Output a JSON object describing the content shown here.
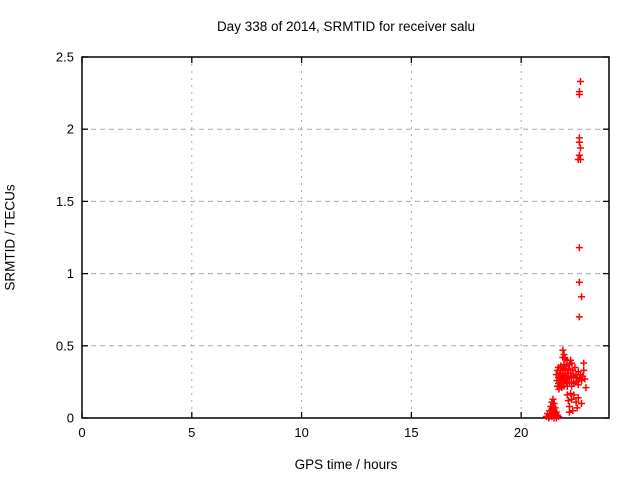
{
  "chart_data": {
    "type": "scatter",
    "title": "Day 338 of 2014, SRMTID for receiver salu",
    "xlabel": "GPS time / hours",
    "ylabel": "SRMTID / TECUs",
    "xlim": [
      0,
      24
    ],
    "ylim": [
      0,
      2.5
    ],
    "xticks": [
      0,
      5,
      10,
      15,
      20
    ],
    "yticks": [
      0,
      0.5,
      1,
      1.5,
      2,
      2.5
    ],
    "grid": true,
    "grid_color": "#a8a8a8",
    "border_color": "#000000",
    "marker": "plus",
    "marker_color": "#ff0000",
    "legend": "none",
    "series": [
      {
        "name": "SRMTID",
        "points": [
          [
            21.15,
            0.01
          ],
          [
            21.2,
            0.03
          ],
          [
            21.25,
            0.0
          ],
          [
            21.3,
            0.05
          ],
          [
            21.3,
            0.01
          ],
          [
            21.35,
            0.08
          ],
          [
            21.35,
            0.03
          ],
          [
            21.4,
            0.11
          ],
          [
            21.4,
            0.06
          ],
          [
            21.4,
            0.01
          ],
          [
            21.45,
            0.13
          ],
          [
            21.45,
            0.08
          ],
          [
            21.45,
            0.03
          ],
          [
            21.5,
            0.1
          ],
          [
            21.5,
            0.05
          ],
          [
            21.5,
            0.0
          ],
          [
            21.55,
            0.07
          ],
          [
            21.55,
            0.02
          ],
          [
            21.6,
            0.04
          ],
          [
            21.6,
            0.0
          ],
          [
            21.65,
            0.02
          ],
          [
            21.7,
            0.01
          ],
          [
            21.9,
            0.47
          ],
          [
            21.95,
            0.44
          ],
          [
            21.9,
            0.42
          ],
          [
            22.0,
            0.41
          ],
          [
            22.1,
            0.4
          ],
          [
            22.25,
            0.4
          ],
          [
            22.3,
            0.38
          ],
          [
            21.6,
            0.3
          ],
          [
            21.63,
            0.26
          ],
          [
            21.65,
            0.33
          ],
          [
            21.65,
            0.22
          ],
          [
            21.7,
            0.35
          ],
          [
            21.7,
            0.28
          ],
          [
            21.7,
            0.24
          ],
          [
            21.72,
            0.2
          ],
          [
            21.75,
            0.31
          ],
          [
            21.75,
            0.26
          ],
          [
            21.8,
            0.36
          ],
          [
            21.8,
            0.33
          ],
          [
            21.8,
            0.29
          ],
          [
            21.8,
            0.23
          ],
          [
            21.85,
            0.27
          ],
          [
            21.85,
            0.21
          ],
          [
            21.9,
            0.34
          ],
          [
            21.9,
            0.3
          ],
          [
            21.9,
            0.25
          ],
          [
            21.95,
            0.37
          ],
          [
            21.95,
            0.28
          ],
          [
            21.95,
            0.22
          ],
          [
            22.0,
            0.33
          ],
          [
            22.0,
            0.29
          ],
          [
            22.0,
            0.26
          ],
          [
            22.05,
            0.36
          ],
          [
            22.05,
            0.24
          ],
          [
            22.1,
            0.31
          ],
          [
            22.1,
            0.27
          ],
          [
            22.1,
            0.22
          ],
          [
            22.15,
            0.34
          ],
          [
            22.15,
            0.29
          ],
          [
            22.2,
            0.37
          ],
          [
            22.2,
            0.25
          ],
          [
            22.25,
            0.31
          ],
          [
            22.3,
            0.28
          ],
          [
            22.3,
            0.22
          ],
          [
            22.35,
            0.33
          ],
          [
            22.4,
            0.29
          ],
          [
            22.4,
            0.24
          ],
          [
            22.45,
            0.35
          ],
          [
            22.5,
            0.3
          ],
          [
            22.5,
            0.25
          ],
          [
            22.55,
            0.28
          ],
          [
            22.6,
            0.32
          ],
          [
            22.6,
            0.23
          ],
          [
            22.65,
            0.27
          ],
          [
            22.7,
            0.3
          ],
          [
            22.75,
            0.26
          ],
          [
            22.8,
            0.29
          ],
          [
            22.85,
            0.38
          ],
          [
            22.85,
            0.33
          ],
          [
            22.9,
            0.27
          ],
          [
            22.95,
            0.21
          ],
          [
            22.1,
            0.16
          ],
          [
            22.15,
            0.12
          ],
          [
            22.2,
            0.08
          ],
          [
            22.25,
            0.17
          ],
          [
            22.3,
            0.13
          ],
          [
            22.35,
            0.05
          ],
          [
            22.4,
            0.16
          ],
          [
            22.5,
            0.11
          ],
          [
            22.55,
            0.07
          ],
          [
            22.6,
            0.14
          ],
          [
            22.75,
            0.1
          ],
          [
            22.2,
            0.04
          ],
          [
            22.7,
            2.33
          ],
          [
            22.65,
            2.26
          ],
          [
            22.65,
            2.24
          ],
          [
            22.65,
            1.94
          ],
          [
            22.65,
            1.91
          ],
          [
            22.7,
            1.87
          ],
          [
            22.65,
            1.82
          ],
          [
            22.6,
            1.79
          ],
          [
            22.7,
            1.79
          ],
          [
            22.65,
            1.18
          ],
          [
            22.65,
            0.94
          ],
          [
            22.75,
            0.84
          ],
          [
            22.65,
            0.7
          ]
        ]
      }
    ]
  }
}
